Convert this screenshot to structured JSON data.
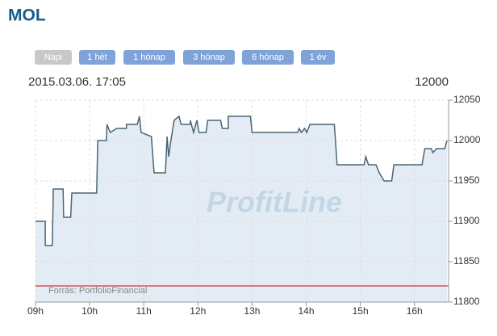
{
  "header": {
    "title": "MOL"
  },
  "buttons": [
    {
      "label": "Napi",
      "active": true
    },
    {
      "label": "1 hét",
      "active": false
    },
    {
      "label": "1 hónap",
      "active": false
    },
    {
      "label": "3 hónap",
      "active": false
    },
    {
      "label": "6 hónap",
      "active": false
    },
    {
      "label": "1 év",
      "active": false
    }
  ],
  "chart_data": {
    "type": "line",
    "date_label": "2015.03.06. 17:05",
    "current_value": 12000,
    "watermark": "ProfitLine",
    "source": "Forrás: PortfolioFinancial",
    "color": "#4a6577",
    "fill_color": "#e3ecf5",
    "reference_line": {
      "value": 11820,
      "color": "#d9534f"
    },
    "x": [
      9.0,
      9.18,
      9.18,
      9.31,
      9.33,
      9.51,
      9.52,
      9.65,
      9.67,
      10.13,
      10.15,
      10.31,
      10.32,
      10.38,
      10.5,
      10.68,
      10.68,
      10.88,
      10.92,
      10.95,
      11.14,
      11.19,
      11.4,
      11.43,
      11.46,
      11.5,
      11.56,
      11.65,
      11.69,
      11.86,
      11.86,
      11.92,
      11.98,
      12.02,
      12.15,
      12.18,
      12.42,
      12.45,
      12.56,
      12.56,
      12.97,
      13.0,
      13.84,
      13.87,
      13.91,
      13.97,
      14.01,
      14.07,
      14.52,
      14.57,
      15.07,
      15.1,
      15.15,
      15.29,
      15.35,
      15.44,
      15.58,
      15.62,
      16.14,
      16.19,
      16.31,
      16.34,
      16.41,
      16.56,
      16.6
    ],
    "values": [
      11900,
      11900,
      11870,
      11870,
      11940,
      11940,
      11905,
      11905,
      11935,
      11935,
      12000,
      12000,
      12020,
      12010,
      12015,
      12015,
      12020,
      12020,
      12030,
      12010,
      12005,
      11960,
      11960,
      12005,
      11980,
      12000,
      12025,
      12030,
      12020,
      12020,
      12025,
      12010,
      12025,
      12010,
      12010,
      12025,
      12025,
      12015,
      12015,
      12030,
      12030,
      12010,
      12010,
      12015,
      12010,
      12015,
      12010,
      12020,
      12020,
      11970,
      11970,
      11980,
      11970,
      11970,
      11960,
      11950,
      11950,
      11970,
      11970,
      11990,
      11990,
      11985,
      11990,
      11990,
      12000
    ],
    "xlim": [
      9,
      16.63
    ],
    "xticks": [
      {
        "value": 9,
        "label": "09h"
      },
      {
        "value": 10,
        "label": "10h"
      },
      {
        "value": 11,
        "label": "11h"
      },
      {
        "value": 12,
        "label": "12h"
      },
      {
        "value": 13,
        "label": "13h"
      },
      {
        "value": 14,
        "label": "14h"
      },
      {
        "value": 15,
        "label": "15h"
      },
      {
        "value": 16,
        "label": "16h"
      }
    ],
    "ylim": [
      11800,
      12050
    ],
    "yticks": [
      11800,
      11850,
      11900,
      11950,
      12000,
      12050
    ],
    "grid": true
  }
}
